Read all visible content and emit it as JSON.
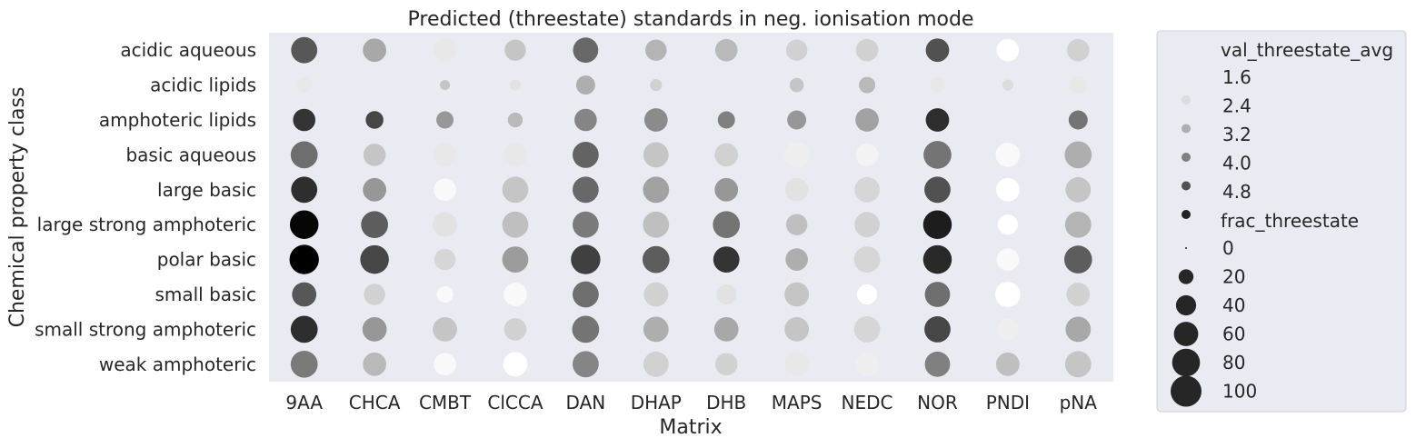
{
  "chart_data": {
    "type": "scatter",
    "title": "Predicted (threestate) standards in neg. ionisation mode",
    "xlabel": "Matrix",
    "ylabel": "Chemical property class",
    "x_categories": [
      "9AA",
      "CHCA",
      "CMBT",
      "ClCCA",
      "DAN",
      "DHAP",
      "DHB",
      "MAPS",
      "NEDC",
      "NOR",
      "PNDI",
      "pNA"
    ],
    "y_categories": [
      "acidic aqueous",
      "acidic lipids",
      "amphoteric lipids",
      "basic aqueous",
      "large basic",
      "large strong amphoteric",
      "polar basic",
      "small basic",
      "small strong amphoteric",
      "weak amphoteric"
    ],
    "color_variable": "val_threestate_avg",
    "size_variable": "frac_threestate",
    "color_range": [
      1.0,
      5.4
    ],
    "size_range": [
      0,
      100
    ],
    "colormap": "greys",
    "grid": false,
    "background_color": "#eaeaf2",
    "legend_placement": "outside-right",
    "legend": {
      "hue_title": "val_threestate_avg",
      "hue_entries": [
        "1.6",
        "2.4",
        "3.2",
        "4.0",
        "4.8"
      ],
      "size_title": "frac_threestate",
      "size_entries": [
        "0",
        "20",
        "40",
        "60",
        "80",
        "100"
      ]
    },
    "points": [
      {
        "x": "9AA",
        "y": "acidic aqueous",
        "frac_threestate": 70,
        "val_threestate_avg": 3.9
      },
      {
        "x": "CHCA",
        "y": "acidic aqueous",
        "frac_threestate": 55,
        "val_threestate_avg": 2.5
      },
      {
        "x": "CMBT",
        "y": "acidic aqueous",
        "frac_threestate": 55,
        "val_threestate_avg": 1.4
      },
      {
        "x": "ClCCA",
        "y": "acidic aqueous",
        "frac_threestate": 45,
        "val_threestate_avg": 2.0
      },
      {
        "x": "DAN",
        "y": "acidic aqueous",
        "frac_threestate": 65,
        "val_threestate_avg": 3.6
      },
      {
        "x": "DHAP",
        "y": "acidic aqueous",
        "frac_threestate": 45,
        "val_threestate_avg": 2.3
      },
      {
        "x": "DHB",
        "y": "acidic aqueous",
        "frac_threestate": 50,
        "val_threestate_avg": 2.2
      },
      {
        "x": "MAPS",
        "y": "acidic aqueous",
        "frac_threestate": 45,
        "val_threestate_avg": 1.8
      },
      {
        "x": "NEDC",
        "y": "acidic aqueous",
        "frac_threestate": 50,
        "val_threestate_avg": 1.8
      },
      {
        "x": "NOR",
        "y": "acidic aqueous",
        "frac_threestate": 55,
        "val_threestate_avg": 4.0
      },
      {
        "x": "PNDI",
        "y": "acidic aqueous",
        "frac_threestate": 50,
        "val_threestate_avg": 1.0
      },
      {
        "x": "pNA",
        "y": "acidic aqueous",
        "frac_threestate": 50,
        "val_threestate_avg": 1.8
      },
      {
        "x": "9AA",
        "y": "acidic lipids",
        "frac_threestate": 20,
        "val_threestate_avg": 1.4
      },
      {
        "x": "CHCA",
        "y": "acidic lipids",
        "frac_threestate": 0,
        "val_threestate_avg": 1.4
      },
      {
        "x": "CMBT",
        "y": "acidic lipids",
        "frac_threestate": 8,
        "val_threestate_avg": 2.0
      },
      {
        "x": "ClCCA",
        "y": "acidic lipids",
        "frac_threestate": 10,
        "val_threestate_avg": 1.5
      },
      {
        "x": "DAN",
        "y": "acidic lipids",
        "frac_threestate": 35,
        "val_threestate_avg": 2.4
      },
      {
        "x": "DHAP",
        "y": "acidic lipids",
        "frac_threestate": 12,
        "val_threestate_avg": 1.8
      },
      {
        "x": "DHB",
        "y": "acidic lipids",
        "frac_threestate": 0,
        "val_threestate_avg": 1.4
      },
      {
        "x": "MAPS",
        "y": "acidic lipids",
        "frac_threestate": 18,
        "val_threestate_avg": 2.0
      },
      {
        "x": "NEDC",
        "y": "acidic lipids",
        "frac_threestate": 25,
        "val_threestate_avg": 2.2
      },
      {
        "x": "NOR",
        "y": "acidic lipids",
        "frac_threestate": 20,
        "val_threestate_avg": 1.4
      },
      {
        "x": "PNDI",
        "y": "acidic lipids",
        "frac_threestate": 10,
        "val_threestate_avg": 1.6
      },
      {
        "x": "pNA",
        "y": "acidic lipids",
        "frac_threestate": 30,
        "val_threestate_avg": 1.4
      },
      {
        "x": "9AA",
        "y": "amphoteric lipids",
        "frac_threestate": 50,
        "val_threestate_avg": 4.5
      },
      {
        "x": "CHCA",
        "y": "amphoteric lipids",
        "frac_threestate": 30,
        "val_threestate_avg": 4.2
      },
      {
        "x": "CMBT",
        "y": "amphoteric lipids",
        "frac_threestate": 28,
        "val_threestate_avg": 2.8
      },
      {
        "x": "ClCCA",
        "y": "amphoteric lipids",
        "frac_threestate": 20,
        "val_threestate_avg": 2.2
      },
      {
        "x": "DAN",
        "y": "amphoteric lipids",
        "frac_threestate": 50,
        "val_threestate_avg": 3.1
      },
      {
        "x": "DHAP",
        "y": "amphoteric lipids",
        "frac_threestate": 55,
        "val_threestate_avg": 3.0
      },
      {
        "x": "DHB",
        "y": "amphoteric lipids",
        "frac_threestate": 28,
        "val_threestate_avg": 3.2
      },
      {
        "x": "MAPS",
        "y": "amphoteric lipids",
        "frac_threestate": 35,
        "val_threestate_avg": 2.8
      },
      {
        "x": "NEDC",
        "y": "amphoteric lipids",
        "frac_threestate": 55,
        "val_threestate_avg": 2.6
      },
      {
        "x": "NOR",
        "y": "amphoteric lipids",
        "frac_threestate": 55,
        "val_threestate_avg": 4.6
      },
      {
        "x": "PNDI",
        "y": "amphoteric lipids",
        "frac_threestate": 0,
        "val_threestate_avg": 1.4
      },
      {
        "x": "pNA",
        "y": "amphoteric lipids",
        "frac_threestate": 35,
        "val_threestate_avg": 3.4
      },
      {
        "x": "9AA",
        "y": "basic aqueous",
        "frac_threestate": 75,
        "val_threestate_avg": 3.5
      },
      {
        "x": "CHCA",
        "y": "basic aqueous",
        "frac_threestate": 50,
        "val_threestate_avg": 2.0
      },
      {
        "x": "CMBT",
        "y": "basic aqueous",
        "frac_threestate": 55,
        "val_threestate_avg": 1.4
      },
      {
        "x": "ClCCA",
        "y": "basic aqueous",
        "frac_threestate": 55,
        "val_threestate_avg": 1.4
      },
      {
        "x": "DAN",
        "y": "basic aqueous",
        "frac_threestate": 70,
        "val_threestate_avg": 3.7
      },
      {
        "x": "DHAP",
        "y": "basic aqueous",
        "frac_threestate": 65,
        "val_threestate_avg": 2.0
      },
      {
        "x": "DHB",
        "y": "basic aqueous",
        "frac_threestate": 55,
        "val_threestate_avg": 1.8
      },
      {
        "x": "MAPS",
        "y": "basic aqueous",
        "frac_threestate": 65,
        "val_threestate_avg": 1.3
      },
      {
        "x": "NEDC",
        "y": "basic aqueous",
        "frac_threestate": 50,
        "val_threestate_avg": 1.2
      },
      {
        "x": "NOR",
        "y": "basic aqueous",
        "frac_threestate": 80,
        "val_threestate_avg": 3.4
      },
      {
        "x": "PNDI",
        "y": "basic aqueous",
        "frac_threestate": 60,
        "val_threestate_avg": 1.1
      },
      {
        "x": "pNA",
        "y": "basic aqueous",
        "frac_threestate": 75,
        "val_threestate_avg": 2.4
      },
      {
        "x": "9AA",
        "y": "large basic",
        "frac_threestate": 70,
        "val_threestate_avg": 4.6
      },
      {
        "x": "CHCA",
        "y": "large basic",
        "frac_threestate": 55,
        "val_threestate_avg": 2.8
      },
      {
        "x": "CMBT",
        "y": "large basic",
        "frac_threestate": 50,
        "val_threestate_avg": 1.1
      },
      {
        "x": "ClCCA",
        "y": "large basic",
        "frac_threestate": 70,
        "val_threestate_avg": 2.0
      },
      {
        "x": "DAN",
        "y": "large basic",
        "frac_threestate": 70,
        "val_threestate_avg": 3.6
      },
      {
        "x": "DHAP",
        "y": "large basic",
        "frac_threestate": 70,
        "val_threestate_avg": 2.6
      },
      {
        "x": "DHB",
        "y": "large basic",
        "frac_threestate": 55,
        "val_threestate_avg": 2.8
      },
      {
        "x": "MAPS",
        "y": "large basic",
        "frac_threestate": 55,
        "val_threestate_avg": 1.5
      },
      {
        "x": "NEDC",
        "y": "large basic",
        "frac_threestate": 65,
        "val_threestate_avg": 1.7
      },
      {
        "x": "NOR",
        "y": "large basic",
        "frac_threestate": 70,
        "val_threestate_avg": 4.0
      },
      {
        "x": "PNDI",
        "y": "large basic",
        "frac_threestate": 55,
        "val_threestate_avg": 1.0
      },
      {
        "x": "pNA",
        "y": "large basic",
        "frac_threestate": 65,
        "val_threestate_avg": 2.0
      },
      {
        "x": "9AA",
        "y": "large strong amphoteric",
        "frac_threestate": 85,
        "val_threestate_avg": 5.3
      },
      {
        "x": "CHCA",
        "y": "large strong amphoteric",
        "frac_threestate": 75,
        "val_threestate_avg": 3.8
      },
      {
        "x": "CMBT",
        "y": "large strong amphoteric",
        "frac_threestate": 60,
        "val_threestate_avg": 1.5
      },
      {
        "x": "ClCCA",
        "y": "large strong amphoteric",
        "frac_threestate": 70,
        "val_threestate_avg": 2.1
      },
      {
        "x": "DAN",
        "y": "large strong amphoteric",
        "frac_threestate": 70,
        "val_threestate_avg": 3.3
      },
      {
        "x": "DHAP",
        "y": "large strong amphoteric",
        "frac_threestate": 70,
        "val_threestate_avg": 2.1
      },
      {
        "x": "DHB",
        "y": "large strong amphoteric",
        "frac_threestate": 75,
        "val_threestate_avg": 3.4
      },
      {
        "x": "MAPS",
        "y": "large strong amphoteric",
        "frac_threestate": 45,
        "val_threestate_avg": 2.1
      },
      {
        "x": "NEDC",
        "y": "large strong amphoteric",
        "frac_threestate": 65,
        "val_threestate_avg": 1.8
      },
      {
        "x": "NOR",
        "y": "large strong amphoteric",
        "frac_threestate": 85,
        "val_threestate_avg": 4.9
      },
      {
        "x": "PNDI",
        "y": "large strong amphoteric",
        "frac_threestate": 40,
        "val_threestate_avg": 1.0
      },
      {
        "x": "pNA",
        "y": "large strong amphoteric",
        "frac_threestate": 70,
        "val_threestate_avg": 2.3
      },
      {
        "x": "9AA",
        "y": "polar basic",
        "frac_threestate": 90,
        "val_threestate_avg": 5.5
      },
      {
        "x": "CHCA",
        "y": "polar basic",
        "frac_threestate": 85,
        "val_threestate_avg": 4.2
      },
      {
        "x": "CMBT",
        "y": "polar basic",
        "frac_threestate": 45,
        "val_threestate_avg": 1.7
      },
      {
        "x": "ClCCA",
        "y": "polar basic",
        "frac_threestate": 70,
        "val_threestate_avg": 2.7
      },
      {
        "x": "DAN",
        "y": "polar basic",
        "frac_threestate": 90,
        "val_threestate_avg": 4.3
      },
      {
        "x": "DHAP",
        "y": "polar basic",
        "frac_threestate": 75,
        "val_threestate_avg": 3.8
      },
      {
        "x": "DHB",
        "y": "polar basic",
        "frac_threestate": 70,
        "val_threestate_avg": 4.5
      },
      {
        "x": "MAPS",
        "y": "polar basic",
        "frac_threestate": 50,
        "val_threestate_avg": 2.4
      },
      {
        "x": "NEDC",
        "y": "polar basic",
        "frac_threestate": 70,
        "val_threestate_avg": 1.7
      },
      {
        "x": "NOR",
        "y": "polar basic",
        "frac_threestate": 85,
        "val_threestate_avg": 4.7
      },
      {
        "x": "PNDI",
        "y": "polar basic",
        "frac_threestate": 50,
        "val_threestate_avg": 1.1
      },
      {
        "x": "pNA",
        "y": "polar basic",
        "frac_threestate": 80,
        "val_threestate_avg": 3.8
      },
      {
        "x": "9AA",
        "y": "small basic",
        "frac_threestate": 60,
        "val_threestate_avg": 3.9
      },
      {
        "x": "CHCA",
        "y": "small basic",
        "frac_threestate": 45,
        "val_threestate_avg": 1.8
      },
      {
        "x": "CMBT",
        "y": "small basic",
        "frac_threestate": 25,
        "val_threestate_avg": 1.1
      },
      {
        "x": "ClCCA",
        "y": "small basic",
        "frac_threestate": 55,
        "val_threestate_avg": 1.1
      },
      {
        "x": "DAN",
        "y": "small basic",
        "frac_threestate": 70,
        "val_threestate_avg": 3.5
      },
      {
        "x": "DHAP",
        "y": "small basic",
        "frac_threestate": 60,
        "val_threestate_avg": 1.8
      },
      {
        "x": "DHB",
        "y": "small basic",
        "frac_threestate": 40,
        "val_threestate_avg": 1.5
      },
      {
        "x": "MAPS",
        "y": "small basic",
        "frac_threestate": 60,
        "val_threestate_avg": 2.0
      },
      {
        "x": "NEDC",
        "y": "small basic",
        "frac_threestate": 40,
        "val_threestate_avg": 1.0
      },
      {
        "x": "NOR",
        "y": "small basic",
        "frac_threestate": 65,
        "val_threestate_avg": 3.5
      },
      {
        "x": "PNDI",
        "y": "small basic",
        "frac_threestate": 65,
        "val_threestate_avg": 1.0
      },
      {
        "x": "pNA",
        "y": "small basic",
        "frac_threestate": 55,
        "val_threestate_avg": 1.8
      },
      {
        "x": "9AA",
        "y": "small strong amphoteric",
        "frac_threestate": 75,
        "val_threestate_avg": 4.6
      },
      {
        "x": "CHCA",
        "y": "small strong amphoteric",
        "frac_threestate": 60,
        "val_threestate_avg": 2.8
      },
      {
        "x": "CMBT",
        "y": "small strong amphoteric",
        "frac_threestate": 60,
        "val_threestate_avg": 2.0
      },
      {
        "x": "ClCCA",
        "y": "small strong amphoteric",
        "frac_threestate": 50,
        "val_threestate_avg": 1.8
      },
      {
        "x": "DAN",
        "y": "small strong amphoteric",
        "frac_threestate": 75,
        "val_threestate_avg": 3.4
      },
      {
        "x": "DHAP",
        "y": "small strong amphoteric",
        "frac_threestate": 65,
        "val_threestate_avg": 2.4
      },
      {
        "x": "DHB",
        "y": "small strong amphoteric",
        "frac_threestate": 60,
        "val_threestate_avg": 2.5
      },
      {
        "x": "MAPS",
        "y": "small strong amphoteric",
        "frac_threestate": 60,
        "val_threestate_avg": 2.0
      },
      {
        "x": "NEDC",
        "y": "small strong amphoteric",
        "frac_threestate": 70,
        "val_threestate_avg": 1.7
      },
      {
        "x": "NOR",
        "y": "small strong amphoteric",
        "frac_threestate": 70,
        "val_threestate_avg": 4.2
      },
      {
        "x": "PNDI",
        "y": "small strong amphoteric",
        "frac_threestate": 45,
        "val_threestate_avg": 1.3
      },
      {
        "x": "pNA",
        "y": "small strong amphoteric",
        "frac_threestate": 65,
        "val_threestate_avg": 2.5
      },
      {
        "x": "9AA",
        "y": "weak amphoteric",
        "frac_threestate": 75,
        "val_threestate_avg": 3.3
      },
      {
        "x": "CHCA",
        "y": "weak amphoteric",
        "frac_threestate": 55,
        "val_threestate_avg": 2.2
      },
      {
        "x": "CMBT",
        "y": "weak amphoteric",
        "frac_threestate": 50,
        "val_threestate_avg": 1.1
      },
      {
        "x": "ClCCA",
        "y": "weak amphoteric",
        "frac_threestate": 60,
        "val_threestate_avg": 1.0
      },
      {
        "x": "DAN",
        "y": "weak amphoteric",
        "frac_threestate": 70,
        "val_threestate_avg": 3.1
      },
      {
        "x": "DHAP",
        "y": "weak amphoteric",
        "frac_threestate": 65,
        "val_threestate_avg": 1.8
      },
      {
        "x": "DHB",
        "y": "weak amphoteric",
        "frac_threestate": 50,
        "val_threestate_avg": 1.8
      },
      {
        "x": "MAPS",
        "y": "weak amphoteric",
        "frac_threestate": 60,
        "val_threestate_avg": 1.4
      },
      {
        "x": "NEDC",
        "y": "weak amphoteric",
        "frac_threestate": 55,
        "val_threestate_avg": 1.3
      },
      {
        "x": "NOR",
        "y": "weak amphoteric",
        "frac_threestate": 65,
        "val_threestate_avg": 3.2
      },
      {
        "x": "PNDI",
        "y": "weak amphoteric",
        "frac_threestate": 55,
        "val_threestate_avg": 2.1
      },
      {
        "x": "pNA",
        "y": "weak amphoteric",
        "frac_threestate": 70,
        "val_threestate_avg": 2.0
      }
    ]
  }
}
